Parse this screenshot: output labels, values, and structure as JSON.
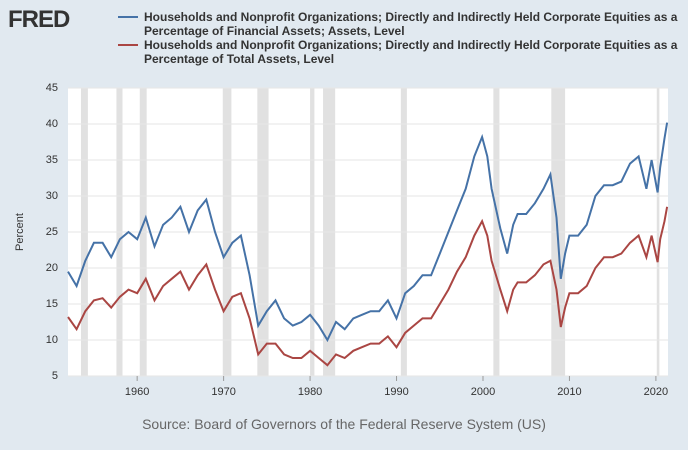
{
  "logo": "FRED",
  "chart_data": {
    "type": "line",
    "y_label": "Percent",
    "source": "Source: Board of Governors of the Federal Reserve System (US)",
    "x": [
      1952,
      1953,
      1954,
      1955,
      1956,
      1957,
      1958,
      1959,
      1960,
      1961,
      1962,
      1963,
      1964,
      1965,
      1966,
      1967,
      1968,
      1969,
      1970,
      1971,
      1972,
      1973,
      1974,
      1975,
      1976,
      1977,
      1978,
      1979,
      1980,
      1981,
      1982,
      1983,
      1984,
      1985,
      1986,
      1987,
      1988,
      1989,
      1990,
      1991,
      1992,
      1993,
      1994,
      1995,
      1996,
      1997,
      1998,
      1999,
      1999.9,
      2000.5,
      2001,
      2002,
      2002.8,
      2003.5,
      2004,
      2005,
      2006,
      2007,
      2007.8,
      2008.5,
      2009,
      2009.5,
      2010,
      2011,
      2012,
      2013,
      2014,
      2015,
      2016,
      2017,
      2018,
      2018.9,
      2019.5,
      2020.2,
      2020.5,
      2021,
      2021.3
    ],
    "series": [
      {
        "name": "Households and Nonprofit Organizations; Directly and Indirectly Held Corporate Equities as a Percentage of Financial Assets; Assets, Level",
        "color": "#4572a7",
        "values": [
          19.5,
          17.5,
          21,
          23.5,
          23.5,
          21.5,
          24,
          25,
          24,
          27,
          23,
          26,
          27,
          28.5,
          25,
          28,
          29.5,
          25,
          21.5,
          23.5,
          24.5,
          19,
          12,
          14,
          15.5,
          13,
          12,
          12.5,
          13.5,
          12,
          10,
          12.5,
          11.5,
          13,
          13.5,
          14,
          14,
          15.5,
          13,
          16.5,
          17.5,
          19,
          19,
          22,
          25,
          28,
          31,
          35.5,
          38.2,
          35.5,
          31,
          25.5,
          22,
          26,
          27.5,
          27.5,
          29,
          31,
          33,
          27,
          18.5,
          22,
          24.5,
          24.5,
          26,
          30,
          31.5,
          31.5,
          32,
          34.5,
          35.5,
          31,
          35,
          30.5,
          34,
          38,
          40.2
        ]
      },
      {
        "name": "Households and Nonprofit Organizations; Directly and Indirectly Held Corporate Equities as a Percentage of Total Assets, Level",
        "color": "#aa4643",
        "values": [
          13.2,
          11.5,
          14,
          15.5,
          15.8,
          14.5,
          16,
          17,
          16.5,
          18.5,
          15.5,
          17.5,
          18.5,
          19.5,
          17,
          19,
          20.5,
          17,
          14,
          16,
          16.5,
          13,
          8,
          9.5,
          9.5,
          8,
          7.5,
          7.5,
          8.5,
          7.5,
          6.5,
          8,
          7.5,
          8.5,
          9,
          9.5,
          9.5,
          10.5,
          9,
          11,
          12,
          13,
          13,
          15,
          17,
          19.5,
          21.5,
          24.5,
          26.5,
          24.5,
          21,
          17,
          14,
          17,
          18,
          18,
          19,
          20.5,
          21,
          17,
          11.8,
          14.5,
          16.5,
          16.5,
          17.5,
          20,
          21.5,
          21.5,
          22,
          23.5,
          24.5,
          21.5,
          24.5,
          20.8,
          24,
          26.5,
          28.5
        ]
      }
    ],
    "recessions": [
      [
        1953.5,
        1954.3
      ],
      [
        1957.6,
        1958.3
      ],
      [
        1960.3,
        1961.1
      ],
      [
        1969.9,
        1970.9
      ],
      [
        1973.9,
        1975.2
      ],
      [
        1980.0,
        1980.5
      ],
      [
        1981.5,
        1982.9
      ],
      [
        1990.5,
        1991.2
      ],
      [
        2001.2,
        2001.9
      ],
      [
        2007.9,
        2009.5
      ],
      [
        2020.1,
        2020.4
      ]
    ],
    "recession_color": "#e1e1e1",
    "xlim": [
      1952,
      2021.4
    ],
    "xticks": [
      1960,
      1970,
      1980,
      1990,
      2000,
      2010,
      2020
    ],
    "ylim": [
      5,
      45
    ],
    "yticks": [
      5,
      10,
      15,
      20,
      25,
      30,
      35,
      40,
      45
    ],
    "grid": true
  }
}
